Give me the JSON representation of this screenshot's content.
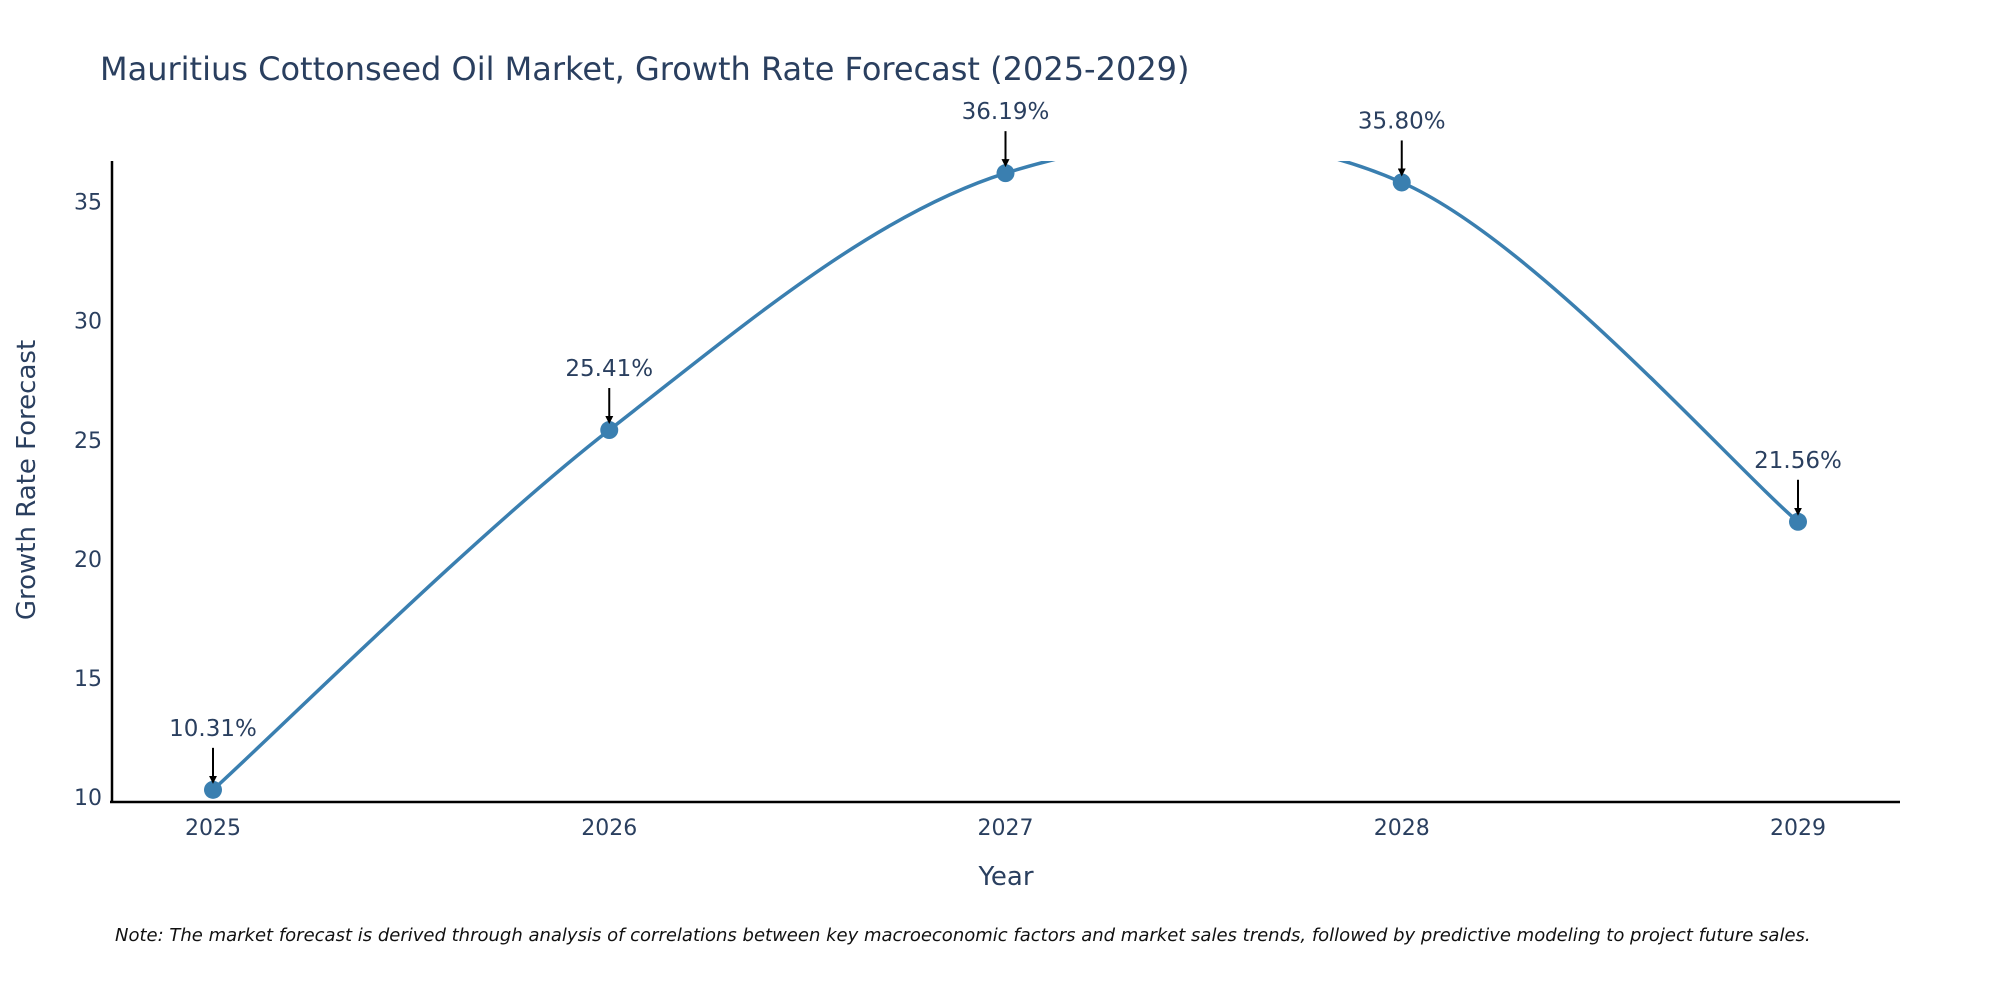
{
  "colors": {
    "line": "#3a7fb0",
    "marker": "#3a7fb0",
    "text": "#2a3f5f",
    "axis": "#000000",
    "arrow": "#000000"
  },
  "chart_data": {
    "type": "line",
    "title": "Mauritius Cottonseed Oil Market, Growth Rate Forecast (2025-2029)",
    "xlabel": "Year",
    "ylabel": "Growth Rate Forecast",
    "categories": [
      "2025",
      "2026",
      "2027",
      "2028",
      "2029"
    ],
    "series": [
      {
        "name": "Growth Rate Forecast",
        "values": [
          10.31,
          25.41,
          36.19,
          35.8,
          21.56
        ]
      }
    ],
    "data_labels": [
      "10.31%",
      "25.41%",
      "36.19%",
      "35.80%",
      "21.56%"
    ],
    "y_ticks": [
      10,
      15,
      20,
      25,
      30,
      35
    ],
    "ylim": [
      9.8,
      36.7
    ],
    "grid": false,
    "line_shape": "spline"
  },
  "note": "Note: The market forecast is derived through analysis of correlations between key macroeconomic factors and market sales trends, followed by predictive modeling to project future sales."
}
